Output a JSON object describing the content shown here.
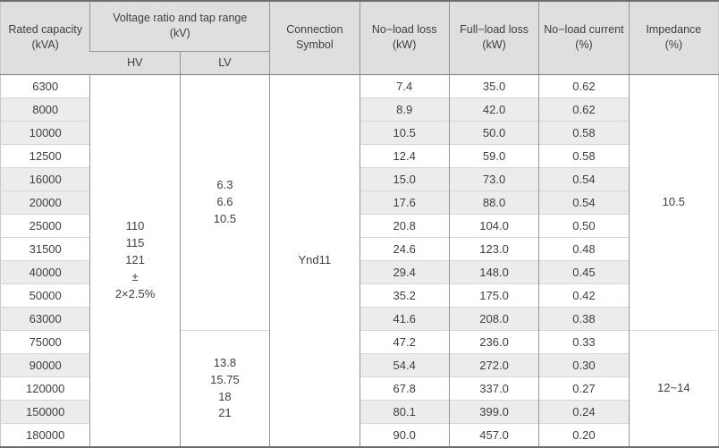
{
  "table": {
    "columns": {
      "rated_capacity": "Rated capacity\n(kVA)",
      "voltage_ratio": "Voltage ratio and tap range\n(kV)",
      "hv": "HV",
      "lv": "LV",
      "connection": "Connection\nSymbol",
      "no_load_loss": "No−load loss\n(kW)",
      "full_load_loss": "Full−load loss\n(kW)",
      "no_load_current": "No−load current\n(%)",
      "impedance": "Impedance\n(%)"
    },
    "hv_cell": {
      "lines": [
        "110",
        "115",
        "121",
        "±",
        "2×2.5%"
      ],
      "row_span": 16
    },
    "connection_cell": {
      "value": "Ynd11",
      "row_span": 16
    },
    "lv_groups": [
      {
        "lines": [
          "6.3",
          "6.6",
          "10.5"
        ],
        "row_span": 11
      },
      {
        "lines": [
          "13.8",
          "15.75",
          "18",
          "21"
        ],
        "row_span": 5
      }
    ],
    "impedance_groups": [
      {
        "value": "10.5",
        "row_span": 11
      },
      {
        "value": "12~14",
        "row_span": 5
      }
    ],
    "rows": [
      {
        "capacity": "6300",
        "no_load_loss": "7.4",
        "full_load_loss": "35.0",
        "no_load_current": "0.62",
        "shaded": false
      },
      {
        "capacity": "8000",
        "no_load_loss": "8.9",
        "full_load_loss": "42.0",
        "no_load_current": "0.62",
        "shaded": true
      },
      {
        "capacity": "10000",
        "no_load_loss": "10.5",
        "full_load_loss": "50.0",
        "no_load_current": "0.58",
        "shaded": true
      },
      {
        "capacity": "12500",
        "no_load_loss": "12.4",
        "full_load_loss": "59.0",
        "no_load_current": "0.58",
        "shaded": false
      },
      {
        "capacity": "16000",
        "no_load_loss": "15.0",
        "full_load_loss": "73.0",
        "no_load_current": "0.54",
        "shaded": true
      },
      {
        "capacity": "20000",
        "no_load_loss": "17.6",
        "full_load_loss": "88.0",
        "no_load_current": "0.54",
        "shaded": true
      },
      {
        "capacity": "25000",
        "no_load_loss": "20.8",
        "full_load_loss": "104.0",
        "no_load_current": "0.50",
        "shaded": false
      },
      {
        "capacity": "31500",
        "no_load_loss": "24.6",
        "full_load_loss": "123.0",
        "no_load_current": "0.48",
        "shaded": false
      },
      {
        "capacity": "40000",
        "no_load_loss": "29.4",
        "full_load_loss": "148.0",
        "no_load_current": "0.45",
        "shaded": true
      },
      {
        "capacity": "50000",
        "no_load_loss": "35.2",
        "full_load_loss": "175.0",
        "no_load_current": "0.42",
        "shaded": false
      },
      {
        "capacity": "63000",
        "no_load_loss": "41.6",
        "full_load_loss": "208.0",
        "no_load_current": "0.38",
        "shaded": true
      },
      {
        "capacity": "75000",
        "no_load_loss": "47.2",
        "full_load_loss": "236.0",
        "no_load_current": "0.33",
        "shaded": false
      },
      {
        "capacity": "90000",
        "no_load_loss": "54.4",
        "full_load_loss": "272.0",
        "no_load_current": "0.30",
        "shaded": true
      },
      {
        "capacity": "120000",
        "no_load_loss": "67.8",
        "full_load_loss": "337.0",
        "no_load_current": "0.27",
        "shaded": false
      },
      {
        "capacity": "150000",
        "no_load_loss": "80.1",
        "full_load_loss": "399.0",
        "no_load_current": "0.24",
        "shaded": true
      },
      {
        "capacity": "180000",
        "no_load_loss": "90.0",
        "full_load_loss": "457.0",
        "no_load_current": "0.20",
        "shaded": false
      }
    ],
    "colors": {
      "header_bg": "#dfdfdf",
      "stripe_bg": "#ececec",
      "border_dark": "#6e6e6e",
      "border_mid": "#969696",
      "border_light": "#d6d6d6",
      "text": "#3e3e3e"
    }
  },
  "chart_data": {
    "type": "table",
    "title": "Transformer specification table",
    "columns": [
      "Rated capacity (kVA)",
      "HV (kV)",
      "LV (kV)",
      "Connection Symbol",
      "No−load loss (kW)",
      "Full−load loss (kW)",
      "No−load current (%)",
      "Impedance (%)"
    ],
    "merged_values": {
      "hv": "110 / 115 / 121 / ± / 2×2.5%",
      "lv_rows_1_11": "6.3 / 6.6 / 10.5",
      "lv_rows_12_16": "13.8 / 15.75 / 18 / 21",
      "connection_symbol": "Ynd11",
      "impedance_rows_1_11": "10.5",
      "impedance_rows_12_16": "12~14"
    },
    "rows": [
      [
        6300,
        7.4,
        35.0,
        0.62
      ],
      [
        8000,
        8.9,
        42.0,
        0.62
      ],
      [
        10000,
        10.5,
        50.0,
        0.58
      ],
      [
        12500,
        12.4,
        59.0,
        0.58
      ],
      [
        16000,
        15.0,
        73.0,
        0.54
      ],
      [
        20000,
        17.6,
        88.0,
        0.54
      ],
      [
        25000,
        20.8,
        104.0,
        0.5
      ],
      [
        31500,
        24.6,
        123.0,
        0.48
      ],
      [
        40000,
        29.4,
        148.0,
        0.45
      ],
      [
        50000,
        35.2,
        175.0,
        0.42
      ],
      [
        63000,
        41.6,
        208.0,
        0.38
      ],
      [
        75000,
        47.2,
        236.0,
        0.33
      ],
      [
        90000,
        54.4,
        272.0,
        0.3
      ],
      [
        120000,
        67.8,
        337.0,
        0.27
      ],
      [
        150000,
        80.1,
        399.0,
        0.24
      ],
      [
        180000,
        90.0,
        457.0,
        0.2
      ]
    ],
    "row_columns": [
      "Rated capacity (kVA)",
      "No−load loss (kW)",
      "Full−load loss (kW)",
      "No−load current (%)"
    ]
  }
}
